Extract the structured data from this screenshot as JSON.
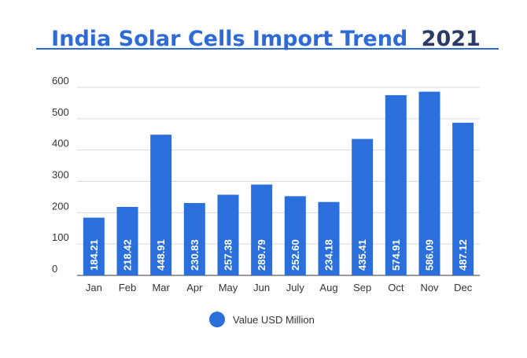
{
  "chart_data": {
    "type": "bar",
    "title": "India Solar Cells Import Trend",
    "title_year": "2021",
    "categories": [
      "Jan",
      "Feb",
      "Mar",
      "Apr",
      "May",
      "Jun",
      "July",
      "Aug",
      "Sep",
      "Oct",
      "Nov",
      "Dec"
    ],
    "series": [
      {
        "name": "Value USD Million",
        "values": [
          184.21,
          218.42,
          448.91,
          230.83,
          257.38,
          289.79,
          252.6,
          234.18,
          435.41,
          574.91,
          586.09,
          487.12
        ],
        "labels": [
          "184.21",
          "218.42",
          "448.91",
          "230.83",
          "257.38",
          "289.79",
          "252.60",
          "234.18",
          "435.41",
          "574.91",
          "586.09",
          "487.12"
        ]
      }
    ],
    "ylim": [
      0,
      600
    ],
    "yticks": [
      "0",
      "100",
      "200",
      "300",
      "400",
      "500",
      "600"
    ],
    "grid": true,
    "legend_position": "bottom",
    "colors": {
      "bar": "#2A6FDB",
      "title_blue": "#2E6BD6",
      "title_year": "#2B3A67",
      "grid": "#D9D9D9"
    }
  }
}
